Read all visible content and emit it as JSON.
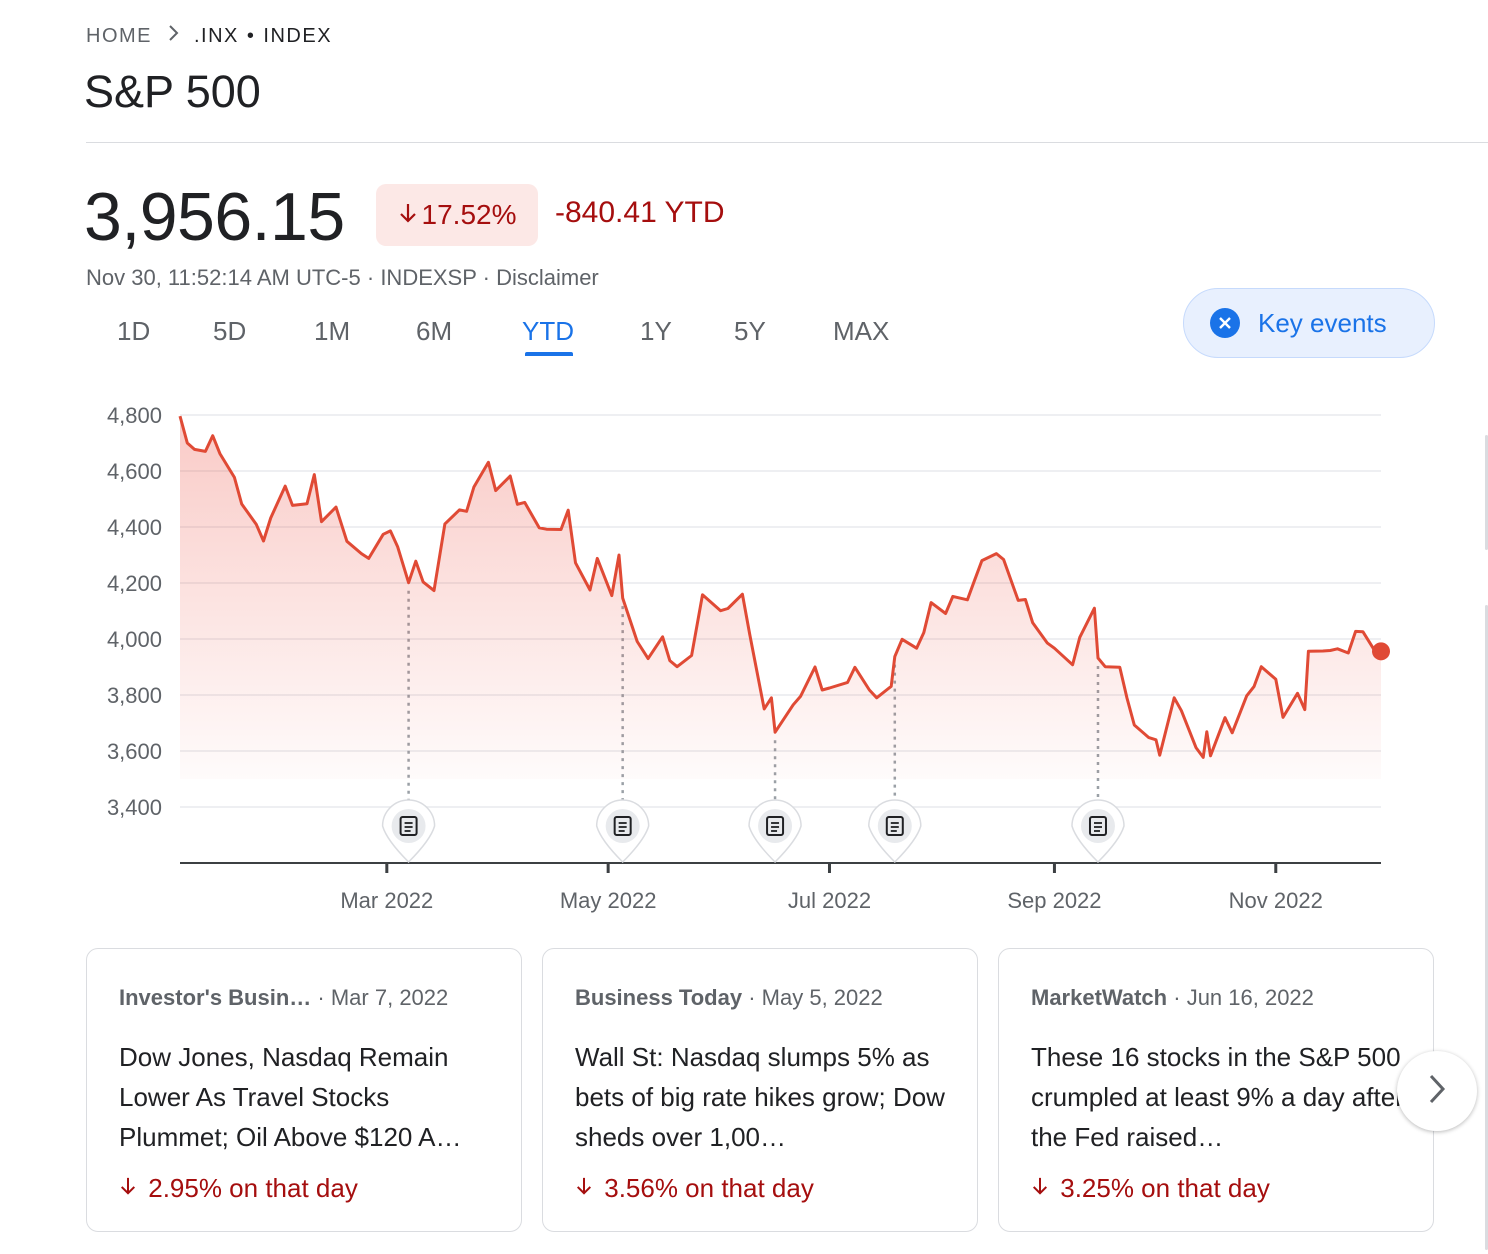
{
  "breadcrumb": {
    "home": "HOME",
    "ticker": ".INX",
    "separator": "•",
    "type": "INDEX"
  },
  "title": "S&P 500",
  "quote": {
    "price": "3,956.15",
    "percent_change": "17.52%",
    "percent_direction": "down",
    "ytd_change": "-840.41 YTD",
    "timestamp": "Nov 30, 11:52:14 AM UTC-5",
    "exchange": "INDEXSP",
    "disclaimer": "Disclaimer"
  },
  "ranges": [
    "1D",
    "5D",
    "1M",
    "6M",
    "YTD",
    "1Y",
    "5Y",
    "MAX"
  ],
  "active_range": "YTD",
  "key_events_button": {
    "label": "Key events",
    "icon": "close-circle-icon",
    "state": "on"
  },
  "colors": {
    "accent": "#1a73e8",
    "negative": "#a50e0e",
    "line": "#ea4335",
    "badge_bg": "#fce8e6"
  },
  "chart_data": {
    "type": "area",
    "x_unit": "date",
    "ylim": [
      3200,
      4800
    ],
    "yticks": [
      4800,
      4600,
      4400,
      4200,
      4000,
      3800,
      3600,
      3400
    ],
    "ytick_labels": [
      "4,800",
      "4,600",
      "4,400",
      "4,200",
      "4,000",
      "3,800",
      "3,600",
      "3,400"
    ],
    "xtick_labels": [
      "Mar 2022",
      "May 2022",
      "Jul 2022",
      "Sep 2022",
      "Nov 2022"
    ],
    "xtick_dates": [
      "2022-03-01",
      "2022-05-01",
      "2022-07-01",
      "2022-09-01",
      "2022-11-01"
    ],
    "grid": true,
    "series": [
      {
        "points": [
          [
            "2022-01-03",
            4796
          ],
          [
            "2022-01-05",
            4700
          ],
          [
            "2022-01-07",
            4677
          ],
          [
            "2022-01-10",
            4670
          ],
          [
            "2022-01-12",
            4726
          ],
          [
            "2022-01-14",
            4662
          ],
          [
            "2022-01-18",
            4577
          ],
          [
            "2022-01-20",
            4482
          ],
          [
            "2022-01-24",
            4410
          ],
          [
            "2022-01-26",
            4350
          ],
          [
            "2022-01-28",
            4432
          ],
          [
            "2022-02-01",
            4546
          ],
          [
            "2022-02-03",
            4477
          ],
          [
            "2022-02-07",
            4483
          ],
          [
            "2022-02-09",
            4587
          ],
          [
            "2022-02-11",
            4419
          ],
          [
            "2022-02-15",
            4471
          ],
          [
            "2022-02-18",
            4349
          ],
          [
            "2022-02-22",
            4305
          ],
          [
            "2022-02-24",
            4288
          ],
          [
            "2022-02-28",
            4374
          ],
          [
            "2022-03-02",
            4386
          ],
          [
            "2022-03-04",
            4329
          ],
          [
            "2022-03-07",
            4201
          ],
          [
            "2022-03-09",
            4278
          ],
          [
            "2022-03-11",
            4204
          ],
          [
            "2022-03-14",
            4173
          ],
          [
            "2022-03-17",
            4411
          ],
          [
            "2022-03-21",
            4461
          ],
          [
            "2022-03-23",
            4456
          ],
          [
            "2022-03-25",
            4543
          ],
          [
            "2022-03-29",
            4631
          ],
          [
            "2022-03-31",
            4530
          ],
          [
            "2022-04-04",
            4582
          ],
          [
            "2022-04-06",
            4481
          ],
          [
            "2022-04-08",
            4488
          ],
          [
            "2022-04-12",
            4397
          ],
          [
            "2022-04-14",
            4392
          ],
          [
            "2022-04-18",
            4391
          ],
          [
            "2022-04-20",
            4460
          ],
          [
            "2022-04-22",
            4272
          ],
          [
            "2022-04-26",
            4175
          ],
          [
            "2022-04-28",
            4288
          ],
          [
            "2022-05-02",
            4155
          ],
          [
            "2022-05-04",
            4300
          ],
          [
            "2022-05-05",
            4146
          ],
          [
            "2022-05-09",
            3991
          ],
          [
            "2022-05-12",
            3930
          ],
          [
            "2022-05-16",
            4008
          ],
          [
            "2022-05-18",
            3923
          ],
          [
            "2022-05-20",
            3901
          ],
          [
            "2022-05-24",
            3941
          ],
          [
            "2022-05-27",
            4158
          ],
          [
            "2022-06-01",
            4101
          ],
          [
            "2022-06-03",
            4109
          ],
          [
            "2022-06-07",
            4160
          ],
          [
            "2022-06-09",
            4017
          ],
          [
            "2022-06-13",
            3750
          ],
          [
            "2022-06-15",
            3790
          ],
          [
            "2022-06-16",
            3667
          ],
          [
            "2022-06-21",
            3765
          ],
          [
            "2022-06-23",
            3795
          ],
          [
            "2022-06-27",
            3900
          ],
          [
            "2022-06-29",
            3818
          ],
          [
            "2022-07-01",
            3825
          ],
          [
            "2022-07-06",
            3845
          ],
          [
            "2022-07-08",
            3899
          ],
          [
            "2022-07-12",
            3818
          ],
          [
            "2022-07-14",
            3790
          ],
          [
            "2022-07-18",
            3831
          ],
          [
            "2022-07-19",
            3937
          ],
          [
            "2022-07-21",
            3999
          ],
          [
            "2022-07-25",
            3967
          ],
          [
            "2022-07-27",
            4023
          ],
          [
            "2022-07-29",
            4130
          ],
          [
            "2022-08-02",
            4091
          ],
          [
            "2022-08-04",
            4152
          ],
          [
            "2022-08-08",
            4140
          ],
          [
            "2022-08-10",
            4210
          ],
          [
            "2022-08-12",
            4280
          ],
          [
            "2022-08-16",
            4305
          ],
          [
            "2022-08-18",
            4284
          ],
          [
            "2022-08-22",
            4138
          ],
          [
            "2022-08-24",
            4141
          ],
          [
            "2022-08-26",
            4058
          ],
          [
            "2022-08-30",
            3986
          ],
          [
            "2022-09-01",
            3967
          ],
          [
            "2022-09-06",
            3908
          ],
          [
            "2022-09-08",
            4006
          ],
          [
            "2022-09-12",
            4110
          ],
          [
            "2022-09-13",
            3932
          ],
          [
            "2022-09-15",
            3901
          ],
          [
            "2022-09-19",
            3899
          ],
          [
            "2022-09-21",
            3789
          ],
          [
            "2022-09-23",
            3693
          ],
          [
            "2022-09-27",
            3648
          ],
          [
            "2022-09-29",
            3640
          ],
          [
            "2022-09-30",
            3585
          ],
          [
            "2022-10-04",
            3790
          ],
          [
            "2022-10-06",
            3744
          ],
          [
            "2022-10-10",
            3612
          ],
          [
            "2022-10-12",
            3577
          ],
          [
            "2022-10-13",
            3669
          ],
          [
            "2022-10-14",
            3583
          ],
          [
            "2022-10-18",
            3719
          ],
          [
            "2022-10-20",
            3665
          ],
          [
            "2022-10-24",
            3797
          ],
          [
            "2022-10-26",
            3830
          ],
          [
            "2022-10-28",
            3901
          ],
          [
            "2022-11-01",
            3856
          ],
          [
            "2022-11-03",
            3720
          ],
          [
            "2022-11-07",
            3806
          ],
          [
            "2022-11-09",
            3748
          ],
          [
            "2022-11-10",
            3956
          ],
          [
            "2022-11-14",
            3957
          ],
          [
            "2022-11-16",
            3959
          ],
          [
            "2022-11-18",
            3965
          ],
          [
            "2022-11-21",
            3950
          ],
          [
            "2022-11-23",
            4027
          ],
          [
            "2022-11-25",
            4026
          ],
          [
            "2022-11-28",
            3964
          ],
          [
            "2022-11-30",
            3956
          ]
        ]
      }
    ],
    "key_event_dates": [
      "2022-03-07",
      "2022-05-05",
      "2022-06-16",
      "2022-07-19",
      "2022-09-13"
    ]
  },
  "news_cards": [
    {
      "source": "Investor's Busin…",
      "date": "Mar 7, 2022",
      "headline": "Dow Jones, Nasdaq Remain Lower As Travel Stocks Plummet; Oil Above $120 A…",
      "change": "2.95% on that day",
      "direction": "down"
    },
    {
      "source": "Business Today",
      "date": "May 5, 2022",
      "headline": "Wall St: Nasdaq slumps 5% as bets of big rate hikes grow; Dow sheds over 1,00…",
      "change": "3.56% on that day",
      "direction": "down"
    },
    {
      "source": "MarketWatch",
      "date": "Jun 16, 2022",
      "headline": "These 16 stocks in the S&P 500 crumpled at least 9% a day after the Fed raised…",
      "change": "3.25% on that day",
      "direction": "down"
    }
  ],
  "next_button_icon": "chevron-right-icon"
}
